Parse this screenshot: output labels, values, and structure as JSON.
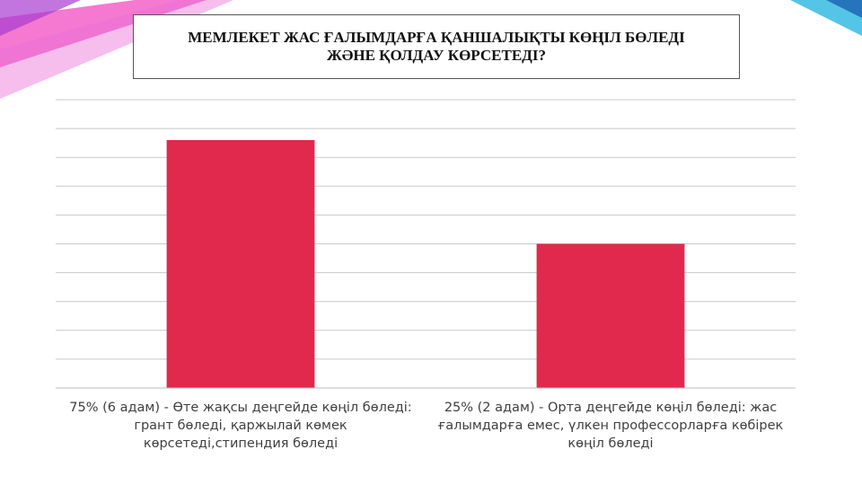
{
  "chart_data": {
    "type": "bar",
    "title": "МЕМЛЕКЕТ ЖАС ҒАЛЫМДАРҒА ҚАНШАЛЫҚТЫ КӨҢІЛ БӨЛЕДІ ЖӘНЕ ҚОЛДАУ КӨРСЕТЕДІ?",
    "categories": [
      "75% (6 адам) - Өте жақсы деңгейде көңіл бөледі: грант бөледі, қаржылай көмек көрсетеді,стипендия бөледі",
      "25% (2 адам) - Орта деңгейде көңіл бөледі: жас ғалымдарға емес, үлкен профессорларға көбірек көңіл бөледі"
    ],
    "values": [
      8.6,
      5.0
    ],
    "color": "#e0294d",
    "ylim": [
      0,
      10
    ],
    "yticks": [
      0,
      1,
      2,
      3,
      4,
      5,
      6,
      7,
      8,
      9,
      10
    ],
    "grid": true
  }
}
